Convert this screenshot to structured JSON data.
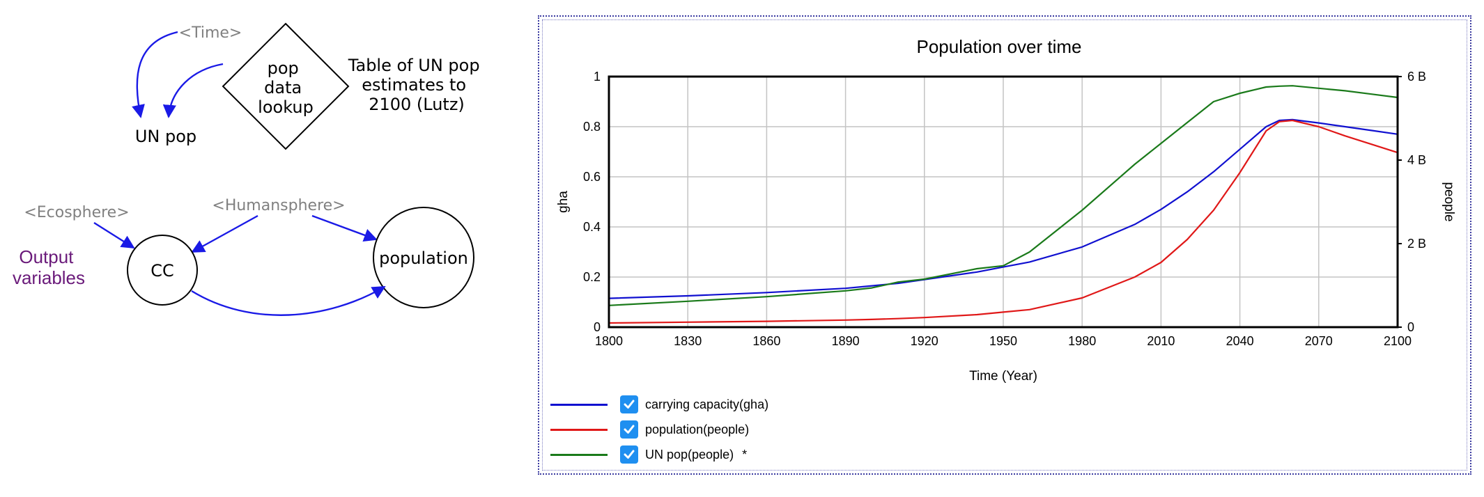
{
  "diagram": {
    "time_shadow": "<Time>",
    "un_pop": "UN pop",
    "lookup_lines": [
      "pop",
      "data",
      "lookup"
    ],
    "table_note_lines": [
      "Table of UN pop",
      "estimates to",
      "2100 (Lutz)"
    ],
    "ecosphere_shadow": "<Ecosphere>",
    "humansphere_shadow": "<Humansphere>",
    "output_lines": [
      "Output",
      "variables"
    ],
    "cc": "CC",
    "population": "population",
    "colors": {
      "shadow": "#808080",
      "arrow": "#1a1ae6",
      "output": "#6a1a7a"
    }
  },
  "chart_data": {
    "type": "line",
    "title": "Population over time",
    "xlabel": "Time (Year)",
    "ylabel_left": "gha",
    "ylabel_right": "people",
    "xlim": [
      1800,
      2100
    ],
    "ylim_left": [
      0,
      1
    ],
    "ylim_right": [
      0,
      6000000000
    ],
    "x_ticks": [
      "1800",
      "1830",
      "1860",
      "1890",
      "1920",
      "1950",
      "1980",
      "2010",
      "2040",
      "2070",
      "2100"
    ],
    "y_ticks_left": [
      "0",
      "0.2",
      "0.4",
      "0.6",
      "0.8",
      "1"
    ],
    "y_ticks_right": [
      "0",
      "2 B",
      "4 B",
      "6 B"
    ],
    "grid": true,
    "legend_position": "bottom-left",
    "x": [
      1800,
      1830,
      1860,
      1890,
      1900,
      1910,
      1920,
      1940,
      1950,
      1960,
      1980,
      2000,
      2010,
      2020,
      2030,
      2040,
      2050,
      2055,
      2060,
      2070,
      2080,
      2090,
      2100
    ],
    "series": [
      {
        "name": "carrying capacity(gha)",
        "axis": "left",
        "color": "#1010d0",
        "values": [
          0.115,
          0.125,
          0.138,
          0.155,
          0.165,
          0.175,
          0.19,
          0.22,
          0.24,
          0.26,
          0.32,
          0.41,
          0.47,
          0.54,
          0.62,
          0.71,
          0.8,
          0.825,
          0.828,
          0.815,
          0.8,
          0.785,
          0.77
        ]
      },
      {
        "name": "population(people)",
        "axis": "right",
        "color": "#e01818",
        "values": [
          100000000,
          120000000,
          140000000,
          170000000,
          185000000,
          205000000,
          230000000,
          300000000,
          360000000,
          420000000,
          700000000,
          1200000000,
          1550000000,
          2100000000,
          2800000000,
          3700000000,
          4700000000,
          4920000000,
          4950000000,
          4800000000,
          4580000000,
          4380000000,
          4180000000
        ]
      },
      {
        "name": "UN pop(people)",
        "axis": "right",
        "color": "#1a7a1a",
        "values": [
          520000000,
          620000000,
          730000000,
          870000000,
          940000000,
          1080000000,
          1150000000,
          1400000000,
          1470000000,
          1800000000,
          2800000000,
          3900000000,
          4400000000,
          4900000000,
          5400000000,
          5600000000,
          5750000000,
          5770000000,
          5780000000,
          5720000000,
          5660000000,
          5580000000,
          5500000000
        ]
      }
    ],
    "legend": [
      {
        "label": "carrying capacity(gha)",
        "color": "#1010d0",
        "marker": ""
      },
      {
        "label": "population(people)",
        "color": "#e01818",
        "marker": ""
      },
      {
        "label": "UN pop(people)",
        "color": "#1a7a1a",
        "marker": "*"
      }
    ]
  }
}
